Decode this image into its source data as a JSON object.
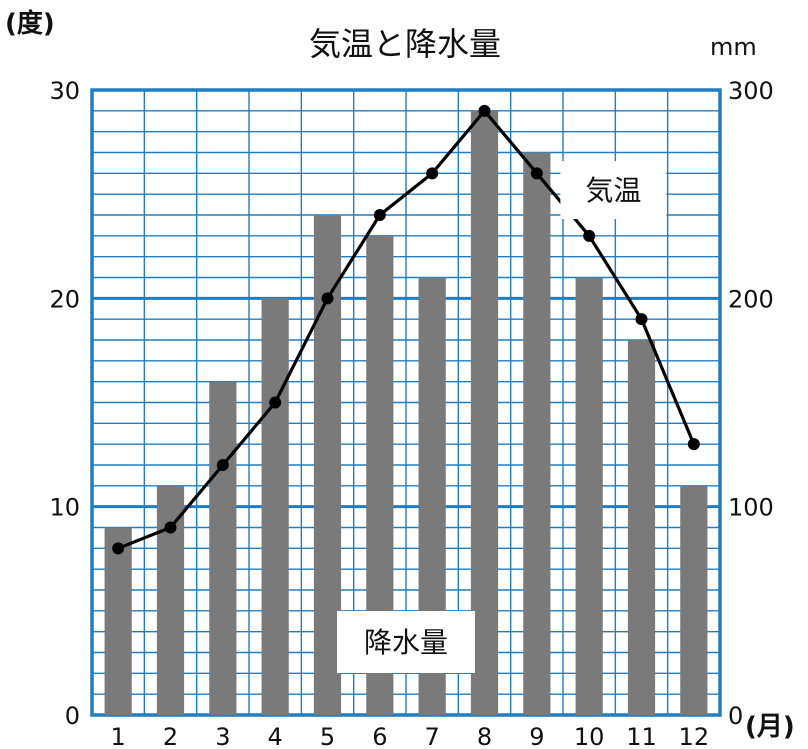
{
  "chart_data": {
    "type": "bar",
    "title": "気温と降水量",
    "categories": [
      "1",
      "2",
      "3",
      "4",
      "5",
      "6",
      "7",
      "8",
      "9",
      "10",
      "11",
      "12"
    ],
    "x_unit": "(月)",
    "y_left": {
      "unit": "(度)",
      "range": [
        0,
        30
      ],
      "ticks": [
        "0",
        "10",
        "20",
        "30"
      ]
    },
    "y_right": {
      "unit": "mm",
      "range": [
        0,
        300
      ],
      "ticks": [
        "0",
        "100",
        "200",
        "300"
      ]
    },
    "grid": true,
    "series": [
      {
        "name": "降水量",
        "type": "bar",
        "axis": "right",
        "values": [
          90,
          110,
          160,
          200,
          240,
          230,
          210,
          290,
          270,
          210,
          180,
          110
        ]
      },
      {
        "name": "気温",
        "type": "line",
        "axis": "left",
        "values": [
          8,
          9,
          12,
          15,
          20,
          24,
          26,
          29,
          26,
          23,
          19,
          13
        ]
      }
    ],
    "colors": {
      "grid": "#1f7dc4",
      "bar": "#7a7a7a",
      "line": "#000000",
      "text": "#111111"
    }
  }
}
